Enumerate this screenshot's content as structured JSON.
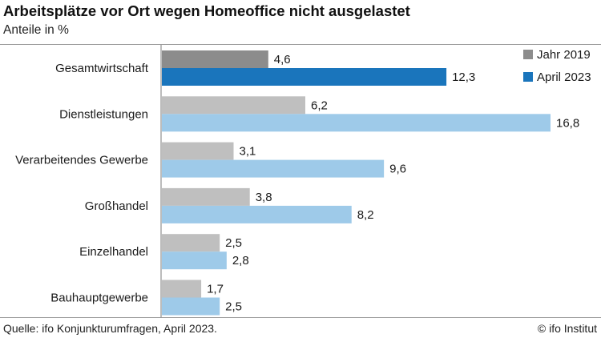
{
  "header": {
    "title": "Arbeitsplätze vor Ort wegen Homeoffice nicht ausgelastet",
    "subtitle": "Anteile in %"
  },
  "footer": {
    "source": "Quelle: ifo Konjunkturumfragen, April 2023.",
    "credit": "© ifo Institut"
  },
  "chart_data": {
    "type": "bar",
    "orientation": "horizontal",
    "title": "Arbeitsplätze vor Ort wegen Homeoffice nicht ausgelastet",
    "subtitle": "Anteile in %",
    "categories": [
      "Gesamtwirtschaft",
      "Dienstleistungen",
      "Verarbeitendes Gewerbe",
      "Großhandel",
      "Einzelhandel",
      "Bauhauptgewerbe"
    ],
    "series": [
      {
        "name": "Jahr 2019",
        "values": [
          4.6,
          6.2,
          3.1,
          3.8,
          2.5,
          1.7
        ],
        "labels": [
          "4,6",
          "6,2",
          "3,1",
          "3,8",
          "2,5",
          "1,7"
        ]
      },
      {
        "name": "April 2023",
        "values": [
          12.3,
          16.8,
          9.6,
          8.2,
          2.8,
          2.5
        ],
        "labels": [
          "12,3",
          "16,8",
          "9,6",
          "8,2",
          "2,8",
          "2,5"
        ]
      }
    ],
    "colors": {
      "highlight": [
        "#8c8c8c",
        "#1a75bc"
      ],
      "normal": [
        "#bfbfbf",
        "#9ecae9"
      ]
    },
    "highlight_category": "Gesamtwirtschaft",
    "xlim": [
      0,
      17.5
    ],
    "axis_labels_visible": false,
    "gridlines": false,
    "legend_position": "top-right"
  }
}
